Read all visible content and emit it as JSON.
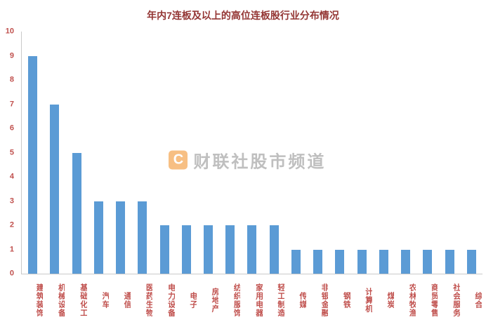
{
  "title": "年内7连板及以上的高位连板股行业分布情况",
  "watermark": {
    "logo_letter": "C",
    "text": "财联社股市频道"
  },
  "chart_data": {
    "type": "bar",
    "title": "年内7连板及以上的高位连板股行业分布情况",
    "categories": [
      "建筑装饰",
      "机械设备",
      "基础化工",
      "汽车",
      "通信",
      "医药生物",
      "电力设备",
      "电子",
      "房地产",
      "纺织服饰",
      "家用电器",
      "轻工制造",
      "传媒",
      "非银金融",
      "钢铁",
      "计算机",
      "煤炭",
      "农林牧渔",
      "商贸零售",
      "社会服务",
      "综合"
    ],
    "values": [
      9,
      7,
      5,
      3,
      3,
      3,
      2,
      2,
      2,
      2,
      2,
      2,
      1,
      1,
      1,
      1,
      1,
      1,
      1,
      1,
      1
    ],
    "xlabel": "",
    "ylabel": "",
    "ylim": [
      0,
      10
    ],
    "ytick_step": 1,
    "grid": false,
    "legend": false,
    "bar_color": "#5B9BD5",
    "axis_label_color": "#C0504D",
    "title_color": "#943634"
  }
}
